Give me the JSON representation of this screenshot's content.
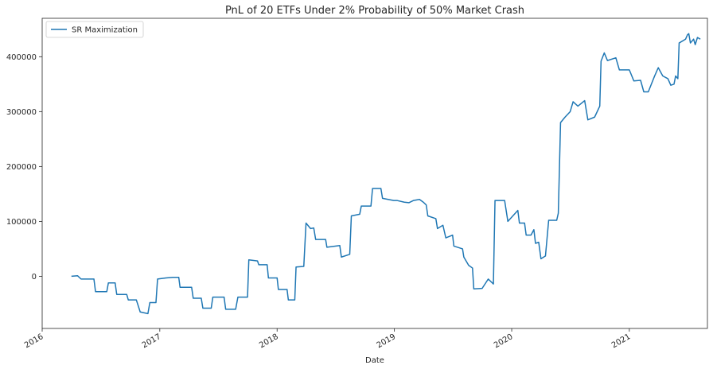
{
  "chart_data": {
    "type": "line",
    "title": "PnL of 20 ETFs Under 2% Probability of 50% Market Crash",
    "xlabel": "Date",
    "ylabel": "",
    "x_ticks": [
      "2016",
      "2017",
      "2018",
      "2019",
      "2020",
      "2021"
    ],
    "y_ticks": [
      "0",
      "100000",
      "200000",
      "300000",
      "400000"
    ],
    "xlim": [
      "2016-01-01",
      "2021-09-01"
    ],
    "ylim": [
      -95000,
      470000
    ],
    "legend": "top-left",
    "grid": false,
    "series": [
      {
        "name": "SR Maximization",
        "color": "#1f77b4",
        "points": [
          [
            "2016-04-01",
            0
          ],
          [
            "2016-04-20",
            1000
          ],
          [
            "2016-05-01",
            -5000
          ],
          [
            "2016-06-10",
            -5000
          ],
          [
            "2016-06-15",
            -28000
          ],
          [
            "2016-07-20",
            -28000
          ],
          [
            "2016-07-25",
            -12000
          ],
          [
            "2016-08-15",
            -12000
          ],
          [
            "2016-08-20",
            -33000
          ],
          [
            "2016-09-20",
            -33000
          ],
          [
            "2016-09-25",
            -43000
          ],
          [
            "2016-10-20",
            -43000
          ],
          [
            "2016-11-01",
            -65000
          ],
          [
            "2016-11-25",
            -68000
          ],
          [
            "2016-12-01",
            -48000
          ],
          [
            "2016-12-20",
            -48000
          ],
          [
            "2016-12-25",
            -5000
          ],
          [
            "2017-01-20",
            -3000
          ],
          [
            "2017-02-10",
            -2000
          ],
          [
            "2017-03-01",
            -2000
          ],
          [
            "2017-03-05",
            -20000
          ],
          [
            "2017-04-10",
            -20000
          ],
          [
            "2017-04-15",
            -40000
          ],
          [
            "2017-05-10",
            -40000
          ],
          [
            "2017-05-15",
            -58000
          ],
          [
            "2017-06-10",
            -58000
          ],
          [
            "2017-06-15",
            -38000
          ],
          [
            "2017-07-20",
            -38000
          ],
          [
            "2017-07-25",
            -60000
          ],
          [
            "2017-08-25",
            -60000
          ],
          [
            "2017-09-01",
            -38000
          ],
          [
            "2017-10-01",
            -38000
          ],
          [
            "2017-10-05",
            30000
          ],
          [
            "2017-11-01",
            28000
          ],
          [
            "2017-11-05",
            21000
          ],
          [
            "2017-12-01",
            21000
          ],
          [
            "2017-12-05",
            -3000
          ],
          [
            "2018-01-01",
            -3000
          ],
          [
            "2018-01-05",
            -24000
          ],
          [
            "2018-02-01",
            -24000
          ],
          [
            "2018-02-05",
            -43000
          ],
          [
            "2018-02-25",
            -43000
          ],
          [
            "2018-03-01",
            17000
          ],
          [
            "2018-03-25",
            18000
          ],
          [
            "2018-04-01",
            97000
          ],
          [
            "2018-04-15",
            87000
          ],
          [
            "2018-04-25",
            88000
          ],
          [
            "2018-05-01",
            67000
          ],
          [
            "2018-06-01",
            67000
          ],
          [
            "2018-06-05",
            53000
          ],
          [
            "2018-07-15",
            56000
          ],
          [
            "2018-07-20",
            35000
          ],
          [
            "2018-08-15",
            40000
          ],
          [
            "2018-08-20",
            110000
          ],
          [
            "2018-09-15",
            113000
          ],
          [
            "2018-09-20",
            128000
          ],
          [
            "2018-10-20",
            128000
          ],
          [
            "2018-10-25",
            160000
          ],
          [
            "2018-11-20",
            160000
          ],
          [
            "2018-11-25",
            142000
          ],
          [
            "2018-12-30",
            138000
          ],
          [
            "2019-01-10",
            138000
          ],
          [
            "2019-02-01",
            135000
          ],
          [
            "2019-02-15",
            134000
          ],
          [
            "2019-03-01",
            138000
          ],
          [
            "2019-03-20",
            140000
          ],
          [
            "2019-04-01",
            135000
          ],
          [
            "2019-04-10",
            130000
          ],
          [
            "2019-04-15",
            110000
          ],
          [
            "2019-05-10",
            105000
          ],
          [
            "2019-05-15",
            87000
          ],
          [
            "2019-06-01",
            93000
          ],
          [
            "2019-06-10",
            70000
          ],
          [
            "2019-07-01",
            75000
          ],
          [
            "2019-07-05",
            55000
          ],
          [
            "2019-08-01",
            50000
          ],
          [
            "2019-08-05",
            35000
          ],
          [
            "2019-08-20",
            20000
          ],
          [
            "2019-09-01",
            15000
          ],
          [
            "2019-09-05",
            -23000
          ],
          [
            "2019-10-01",
            -22000
          ],
          [
            "2019-10-20",
            -5000
          ],
          [
            "2019-11-05",
            -14000
          ],
          [
            "2019-11-10",
            138000
          ],
          [
            "2019-12-10",
            138000
          ],
          [
            "2019-12-20",
            100000
          ],
          [
            "2020-01-20",
            120000
          ],
          [
            "2020-01-25",
            97000
          ],
          [
            "2020-02-10",
            97000
          ],
          [
            "2020-02-15",
            75000
          ],
          [
            "2020-03-01",
            75000
          ],
          [
            "2020-03-10",
            85000
          ],
          [
            "2020-03-15",
            60000
          ],
          [
            "2020-03-25",
            62000
          ],
          [
            "2020-04-01",
            32000
          ],
          [
            "2020-04-15",
            37000
          ],
          [
            "2020-04-25",
            102000
          ],
          [
            "2020-05-20",
            102000
          ],
          [
            "2020-05-25",
            115000
          ],
          [
            "2020-06-01",
            280000
          ],
          [
            "2020-06-15",
            290000
          ],
          [
            "2020-07-01",
            300000
          ],
          [
            "2020-07-10",
            318000
          ],
          [
            "2020-07-25",
            310000
          ],
          [
            "2020-08-15",
            320000
          ],
          [
            "2020-08-25",
            285000
          ],
          [
            "2020-09-15",
            290000
          ],
          [
            "2020-10-01",
            310000
          ],
          [
            "2020-10-05",
            392000
          ],
          [
            "2020-10-15",
            407000
          ],
          [
            "2020-10-25",
            393000
          ],
          [
            "2020-11-20",
            398000
          ],
          [
            "2020-12-01",
            376000
          ],
          [
            "2021-01-01",
            376000
          ],
          [
            "2021-01-15",
            356000
          ],
          [
            "2021-02-05",
            357000
          ],
          [
            "2021-02-15",
            336000
          ],
          [
            "2021-03-01",
            336000
          ],
          [
            "2021-03-20",
            364000
          ],
          [
            "2021-04-01",
            380000
          ],
          [
            "2021-04-15",
            365000
          ],
          [
            "2021-05-01",
            360000
          ],
          [
            "2021-05-10",
            348000
          ],
          [
            "2021-05-20",
            350000
          ],
          [
            "2021-05-25",
            365000
          ],
          [
            "2021-06-01",
            360000
          ],
          [
            "2021-06-05",
            425000
          ],
          [
            "2021-06-25",
            432000
          ],
          [
            "2021-07-01",
            440000
          ],
          [
            "2021-07-05",
            442000
          ],
          [
            "2021-07-10",
            425000
          ],
          [
            "2021-07-20",
            432000
          ],
          [
            "2021-07-25",
            422000
          ],
          [
            "2021-08-01",
            435000
          ],
          [
            "2021-08-10",
            432000
          ]
        ]
      }
    ]
  }
}
